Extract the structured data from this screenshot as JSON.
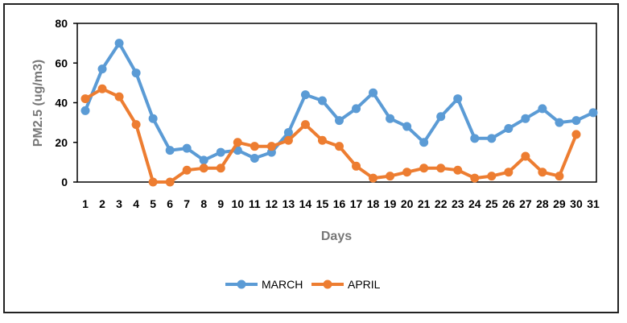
{
  "chart_data": {
    "type": "line",
    "title": "",
    "xlabel": "Days",
    "ylabel": "PM2.5   (ug/m3)",
    "ylim": [
      0,
      80
    ],
    "yticks": [
      0,
      20,
      40,
      60,
      80
    ],
    "grid": false,
    "legend_position": "bottom",
    "categories": [
      "1",
      "2",
      "3",
      "4",
      "5",
      "6",
      "7",
      "8",
      "9",
      "10",
      "11",
      "12",
      "13",
      "14",
      "15",
      "16",
      "17",
      "18",
      "19",
      "20",
      "21",
      "22",
      "23",
      "24",
      "25",
      "26",
      "27",
      "28",
      "29",
      "30",
      "31"
    ],
    "series": [
      {
        "name": "MARCH",
        "color": "#5B9BD5",
        "values": [
          36,
          57,
          70,
          55,
          32,
          16,
          17,
          11,
          15,
          16,
          12,
          15,
          25,
          44,
          41,
          31,
          37,
          45,
          32,
          28,
          20,
          33,
          42,
          22,
          22,
          27,
          32,
          37,
          30,
          31,
          35
        ]
      },
      {
        "name": "APRIL",
        "color": "#ED7D31",
        "values": [
          42,
          47,
          43,
          29,
          0,
          0,
          6,
          7,
          7,
          20,
          18,
          18,
          21,
          29,
          21,
          18,
          8,
          2,
          3,
          5,
          7,
          7,
          6,
          2,
          3,
          5,
          13,
          5,
          3,
          24,
          null
        ]
      }
    ]
  }
}
